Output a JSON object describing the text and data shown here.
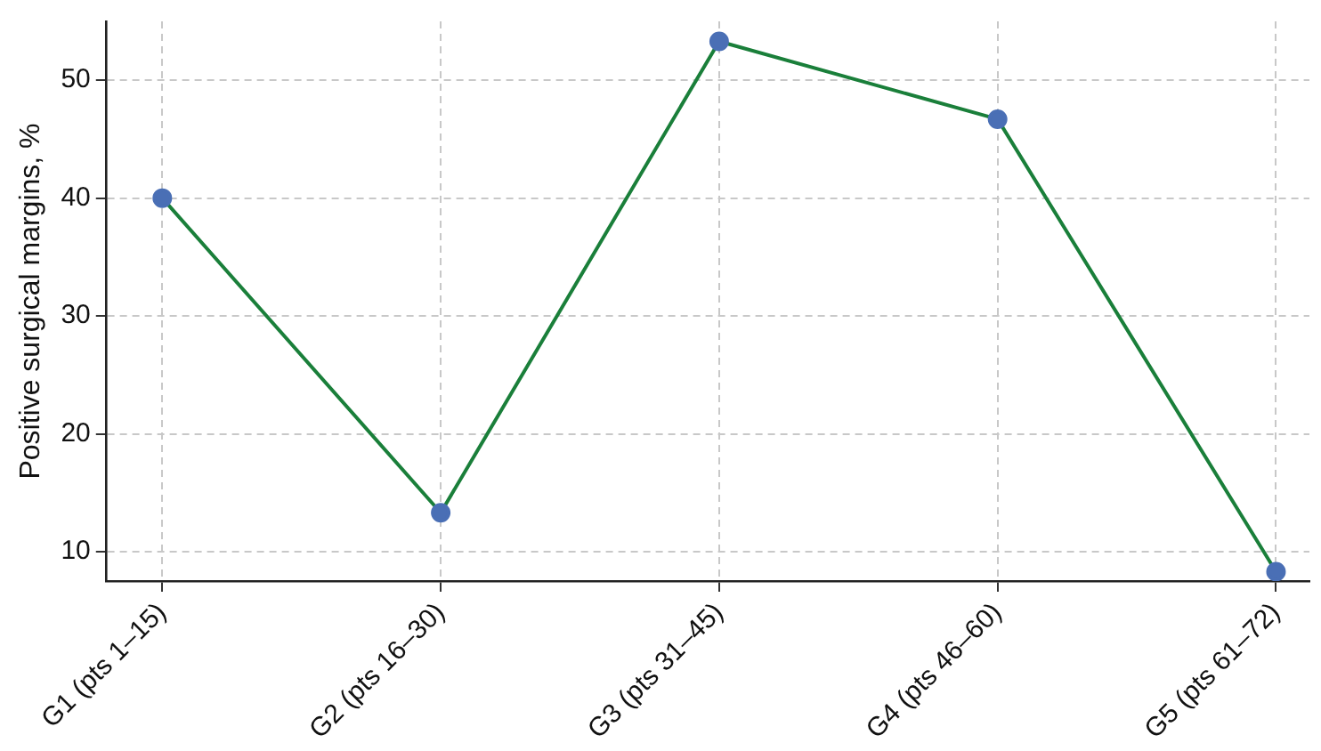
{
  "chart_data": {
    "type": "line",
    "ylabel": "Positive surgical margins, %",
    "categories": [
      "G1 (pts 1–15)",
      "G2 (pts 16–30)",
      "G3 (pts 31–45)",
      "G4 (pts 46–60)",
      "G5 (pts 61–72)"
    ],
    "series": [
      {
        "color": "#1a7f3a",
        "values": [
          40,
          13.3,
          53.3,
          46.7,
          8.3
        ]
      }
    ],
    "ylim": [
      7.5,
      55
    ],
    "yticks": [
      10,
      20,
      30,
      40,
      50
    ],
    "grid": true,
    "marker": "circle",
    "line_style": "solid"
  }
}
